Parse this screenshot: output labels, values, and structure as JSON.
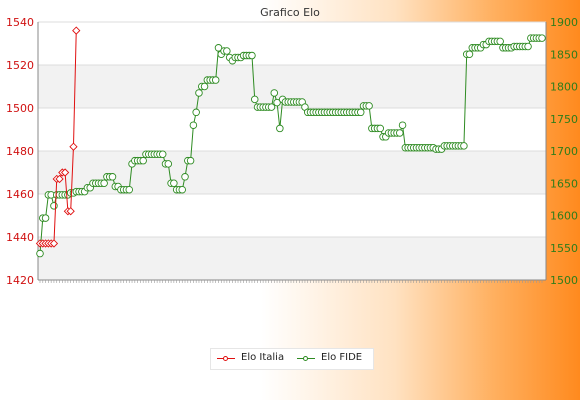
{
  "chart_data": {
    "type": "line",
    "title": "Grafico Elo",
    "left_axis": {
      "ylim": [
        1420,
        1540
      ],
      "ticks": [
        1420,
        1440,
        1460,
        1480,
        1500,
        1520,
        1540
      ]
    },
    "right_axis": {
      "ylim": [
        1500,
        1900
      ],
      "ticks": [
        1500,
        1550,
        1600,
        1650,
        1700,
        1750,
        1800,
        1850,
        1900
      ]
    },
    "grid": "horizontal bands",
    "legend_position": "bottom-center",
    "series": [
      {
        "name": "Elo Italia",
        "axis": "left",
        "color": "#e01010",
        "marker": "diamond",
        "values": [
          1437,
          1437,
          1437,
          1437,
          1437,
          1437,
          1467,
          1467,
          1470,
          1470,
          1452,
          1452,
          1482,
          1536
        ]
      },
      {
        "name": "Elo FIDE",
        "axis": "right",
        "color": "#2e8b22",
        "marker": "circle",
        "values": [
          1541,
          1596,
          1596,
          1632,
          1632,
          1615,
          1632,
          1632,
          1632,
          1632,
          1632,
          1635,
          1635,
          1637,
          1637,
          1637,
          1637,
          1643,
          1643,
          1650,
          1650,
          1650,
          1650,
          1650,
          1660,
          1660,
          1660,
          1645,
          1645,
          1640,
          1640,
          1640,
          1640,
          1680,
          1685,
          1685,
          1685,
          1685,
          1695,
          1695,
          1695,
          1695,
          1695,
          1695,
          1695,
          1680,
          1680,
          1650,
          1650,
          1640,
          1640,
          1640,
          1660,
          1685,
          1685,
          1740,
          1760,
          1790,
          1800,
          1800,
          1810,
          1810,
          1810,
          1810,
          1860,
          1850,
          1855,
          1855,
          1845,
          1840,
          1845,
          1845,
          1845,
          1848,
          1848,
          1848,
          1848,
          1780,
          1768,
          1768,
          1768,
          1768,
          1768,
          1768,
          1790,
          1775,
          1735,
          1780,
          1776,
          1776,
          1776,
          1776,
          1776,
          1776,
          1776,
          1768,
          1760,
          1760,
          1760,
          1760,
          1760,
          1760,
          1760,
          1760,
          1760,
          1760,
          1760,
          1760,
          1760,
          1760,
          1760,
          1760,
          1760,
          1760,
          1760,
          1760,
          1770,
          1770,
          1770,
          1735,
          1735,
          1735,
          1735,
          1722,
          1722,
          1728,
          1728,
          1728,
          1728,
          1728,
          1740,
          1705,
          1705,
          1705,
          1705,
          1705,
          1705,
          1705,
          1705,
          1705,
          1705,
          1705,
          1703,
          1703,
          1703,
          1708,
          1708,
          1708,
          1708,
          1708,
          1708,
          1708,
          1708,
          1850,
          1850,
          1860,
          1860,
          1860,
          1860,
          1865,
          1865,
          1870,
          1870,
          1870,
          1870,
          1870,
          1860,
          1860,
          1860,
          1860,
          1862,
          1862,
          1862,
          1862,
          1862,
          1862,
          1875,
          1875,
          1875,
          1875,
          1875
        ]
      }
    ]
  }
}
